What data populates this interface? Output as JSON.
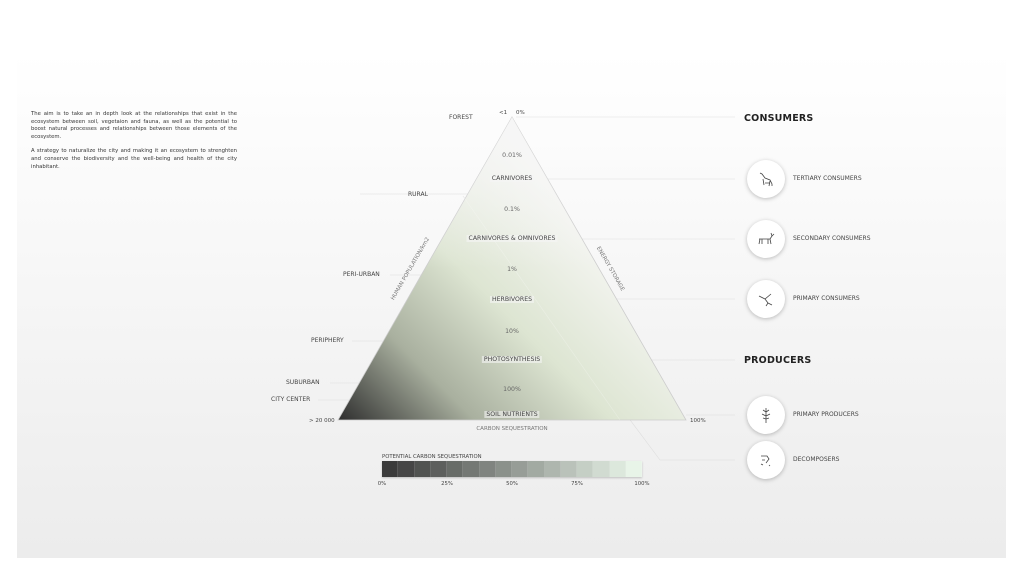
{
  "intro": {
    "p1": "The aim is to take an in depth look at the relationships that exist in the ecosystem between soil, vegetaion and fauna, as well as the potential to boost natural processes and relationships between those elements of the ecosystem.",
    "p2": "A strategy to naturalize the city and making it an ecosystem to strenghten and conserve the biodiversity and the well-being and health of the city inhabitant."
  },
  "left_axis": [
    "FOREST",
    "RURAL",
    "PERI-URBAN",
    "PERIPHERY",
    "SUBURBAN",
    "CITY CENTER"
  ],
  "apex": {
    "population": "<1",
    "percent": "0%"
  },
  "base": {
    "left": "> 20 000",
    "right": "100%",
    "label": "CARBON SEQUESTRATION"
  },
  "side_labels": {
    "left": "HUMAN POPULATION/km2",
    "right": "ENERGY STORAGE"
  },
  "levels": [
    "CARNIVORES",
    "CARNIVORES & OMNIVORES",
    "HERBIVORES",
    "PHOTOSYNTHESIS",
    "SOIL NUTRIENTS"
  ],
  "percents": [
    "0.01%",
    "0.1%",
    "1%",
    "10%",
    "100%"
  ],
  "right": {
    "consumers": "CONSUMERS",
    "producers": "PRODUCERS",
    "items": [
      {
        "label": "TERTIARY CONSUMERS",
        "icon": "wolf-icon"
      },
      {
        "label": "SECONDARY CONSUMERS",
        "icon": "deer-icon"
      },
      {
        "label": "PRIMARY CONSUMERS",
        "icon": "hummingbird-icon"
      },
      {
        "label": "PRIMARY PRODUCERS",
        "icon": "plant-icon"
      },
      {
        "label": "DECOMPOSERS",
        "icon": "fungi-icon"
      }
    ]
  },
  "legend": {
    "title": "POTENTIAL CARBON SEQUESTRATION",
    "ticks": [
      "0%",
      "25%",
      "50%",
      "75%",
      "100%"
    ],
    "colors": {
      "start": "#3a3a3a",
      "end": "#e8f4e8"
    }
  }
}
